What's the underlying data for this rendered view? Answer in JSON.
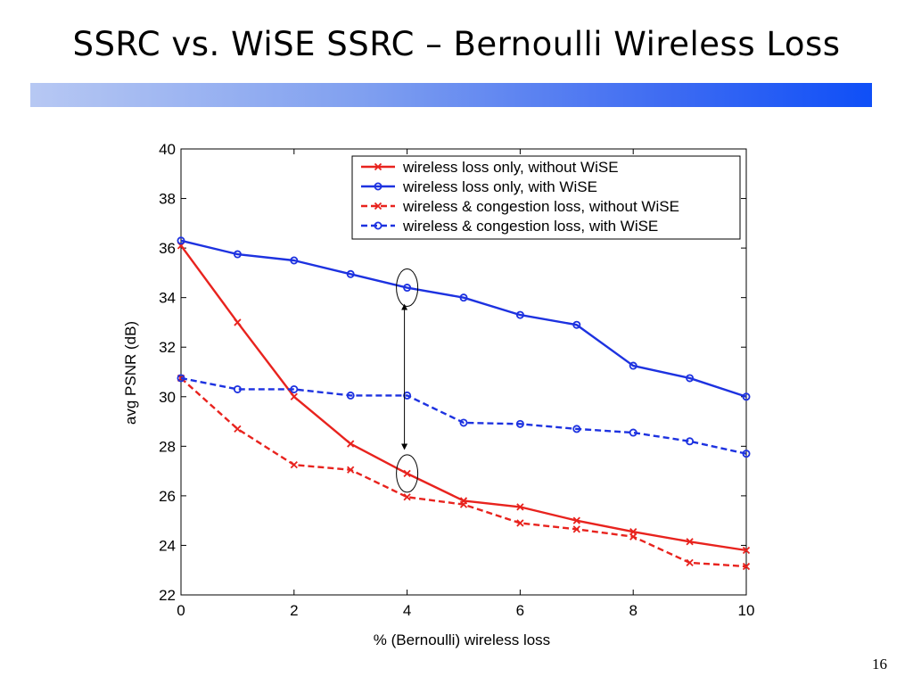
{
  "slide": {
    "title": "SSRC vs. WiSE SSRC – Bernoulli Wireless Loss",
    "page_number": "16"
  },
  "colors": {
    "red": "#e8231e",
    "blue": "#1d32e0",
    "bar_start": "#b7c8f3",
    "bar_end": "#0f4ff7"
  },
  "chart_data": {
    "type": "line",
    "title": "",
    "xlabel": "% (Bernoulli) wireless loss",
    "ylabel": "avg PSNR (dB)",
    "xlim": [
      0,
      10
    ],
    "ylim": [
      22,
      40
    ],
    "xticks": [
      0,
      2,
      4,
      6,
      8,
      10
    ],
    "yticks": [
      22,
      24,
      26,
      28,
      30,
      32,
      34,
      36,
      38,
      40
    ],
    "grid": false,
    "legend_position": "top-right",
    "x": [
      0,
      1,
      2,
      3,
      4,
      5,
      6,
      7,
      8,
      9,
      10
    ],
    "series": [
      {
        "name": "wireless loss only, without WiSE",
        "color": "#e8231e",
        "marker": "x",
        "dashed": false,
        "values": [
          36.1,
          33.0,
          30.0,
          28.1,
          26.9,
          25.8,
          25.55,
          25.0,
          24.55,
          24.15,
          23.8
        ]
      },
      {
        "name": "wireless loss only, with WiSE",
        "color": "#1d32e0",
        "marker": "o",
        "dashed": false,
        "values": [
          36.3,
          35.75,
          35.5,
          34.95,
          34.4,
          34.0,
          33.3,
          32.9,
          31.25,
          30.75,
          30.0
        ]
      },
      {
        "name": "wireless & congestion loss, without WiSE",
        "color": "#e8231e",
        "marker": "x",
        "dashed": true,
        "values": [
          30.75,
          28.7,
          27.25,
          27.05,
          25.95,
          25.65,
          24.9,
          24.65,
          24.35,
          23.3,
          23.15
        ]
      },
      {
        "name": "wireless & congestion loss, with WiSE",
        "color": "#1d32e0",
        "marker": "o",
        "dashed": true,
        "values": [
          30.75,
          30.3,
          30.3,
          30.05,
          30.05,
          28.95,
          28.9,
          28.7,
          28.55,
          28.2,
          27.7
        ]
      }
    ],
    "annotations": [
      {
        "type": "ellipse",
        "x": 4,
        "y": 34.4
      },
      {
        "type": "ellipse",
        "x": 4,
        "y": 26.9
      },
      {
        "type": "double-arrow",
        "x": 4,
        "y_from": 27.9,
        "y_to": 33.7
      }
    ]
  }
}
